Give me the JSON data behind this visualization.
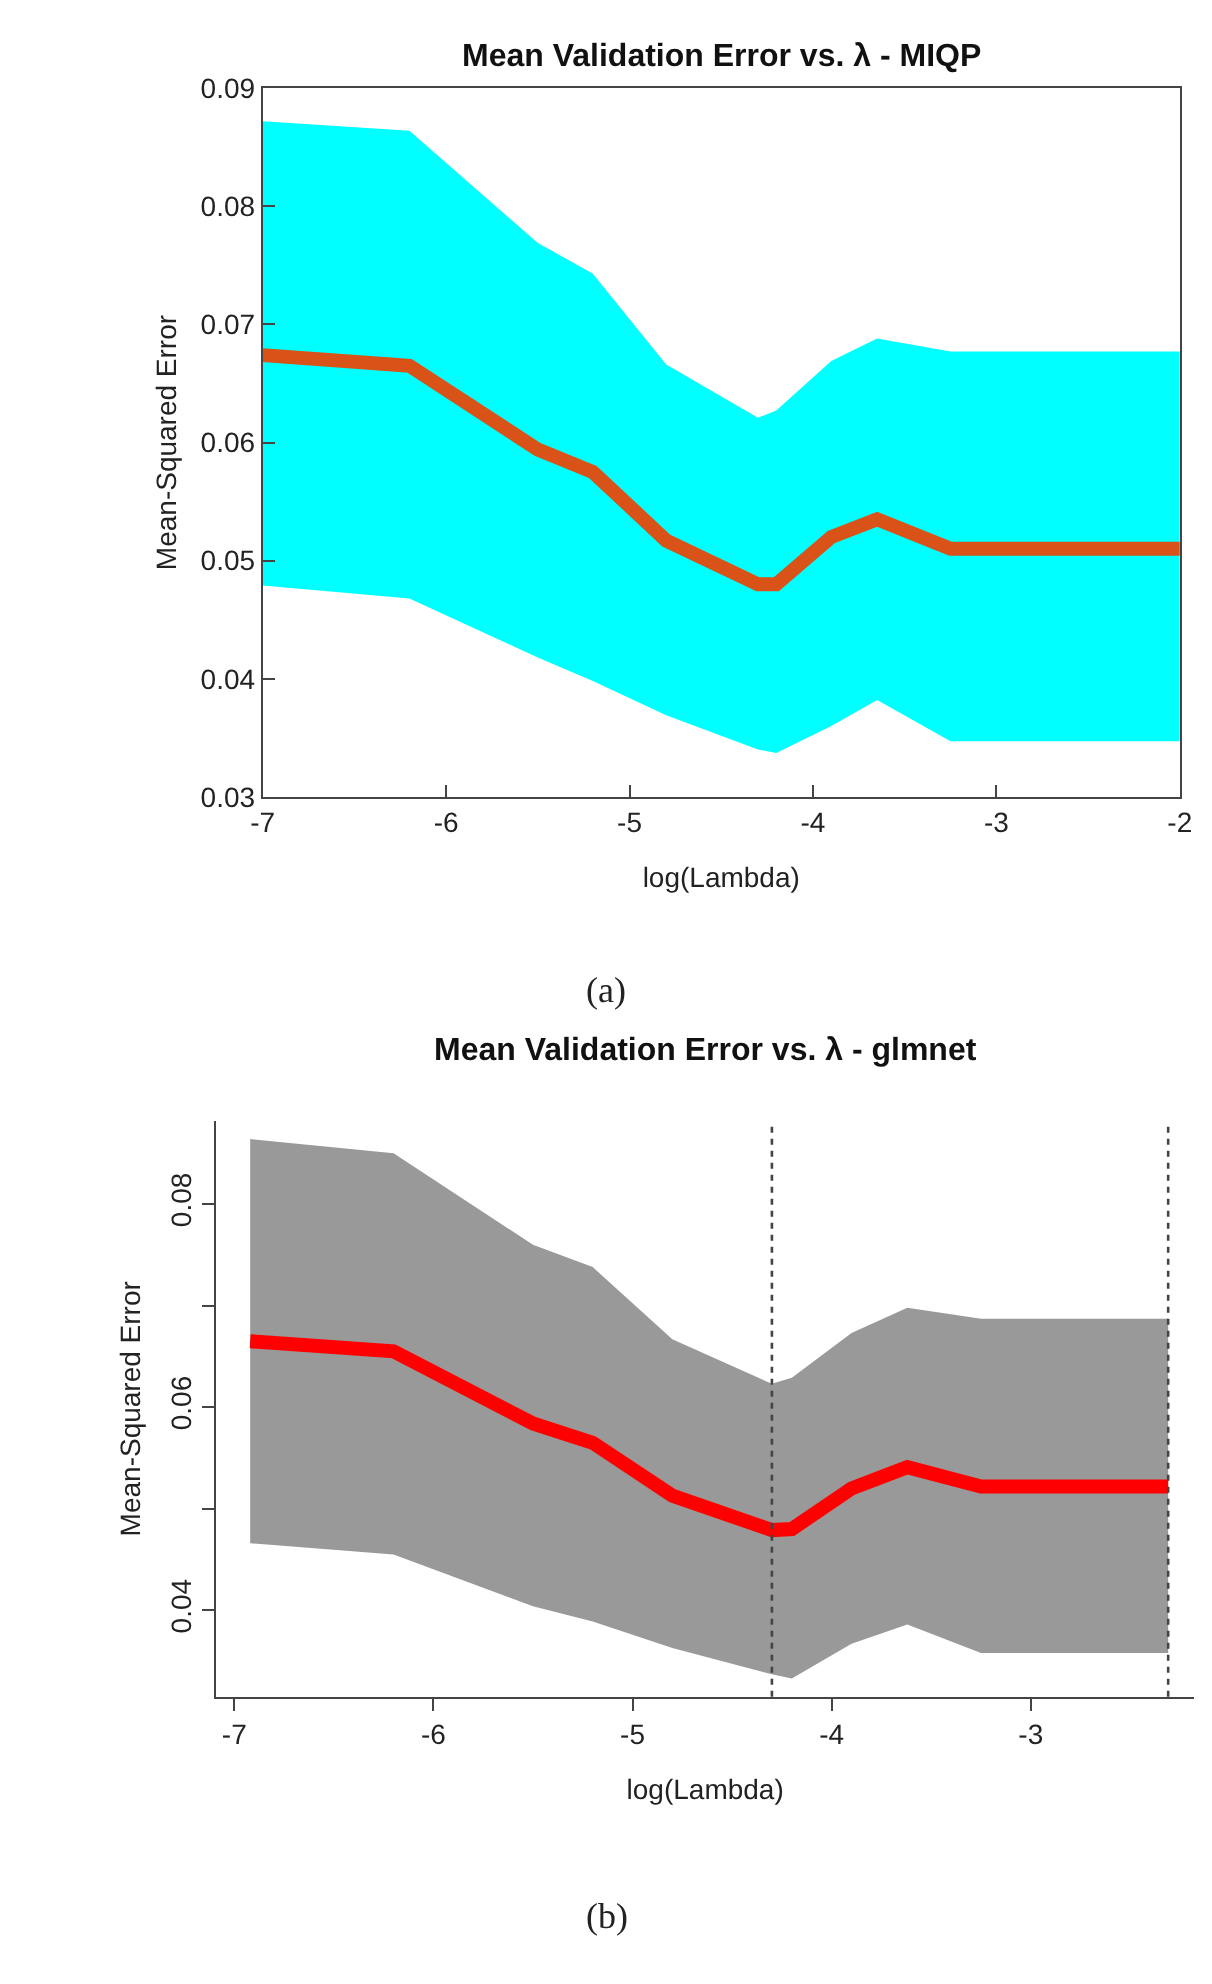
{
  "chart_data": [
    {
      "type": "line",
      "title": "Mean Validation Error vs. λ - MIQP",
      "xlabel": "log(Lambda)",
      "ylabel": "Mean-Squared Error",
      "x": [
        -7,
        -6.2,
        -5.5,
        -5.2,
        -4.8,
        -4.3,
        -4.2,
        -3.9,
        -3.65,
        -3.25,
        -2
      ],
      "series": [
        {
          "color": "#d95319",
          "values": [
            0.0674,
            0.0665,
            0.0594,
            0.0575,
            0.0517,
            0.048,
            0.048,
            0.052,
            0.0535,
            0.051,
            0.051
          ],
          "upper": [
            0.0872,
            0.0864,
            0.0769,
            0.0743,
            0.0666,
            0.0621,
            0.0627,
            0.0669,
            0.0688,
            0.0677,
            0.0677
          ],
          "lower": [
            0.0479,
            0.0468,
            0.0418,
            0.0398,
            0.0369,
            0.034,
            0.0337,
            0.036,
            0.0382,
            0.0347,
            0.0347
          ]
        }
      ],
      "xlim": [
        -7,
        -2
      ],
      "xticks": [
        -7,
        -6,
        -5,
        -4,
        -3,
        -2
      ],
      "ylim": [
        0.03,
        0.09
      ],
      "yticks": [
        0.03,
        0.04,
        0.05,
        0.06,
        0.07,
        0.08,
        0.09
      ],
      "line_style": "solid",
      "marker": "none",
      "annotations": [
        "(a)"
      ]
    },
    {
      "type": "line",
      "title": "Mean Validation Error vs. λ - glmnet",
      "xlabel": "log(Lambda)",
      "ylabel": "Mean-Squared Error",
      "x": [
        -6.92,
        -6.2,
        -5.5,
        -5.2,
        -4.8,
        -4.3,
        -4.2,
        -3.9,
        -3.62,
        -3.25,
        -2.31
      ],
      "series": [
        {
          "color": "#ff0000",
          "values": [
            0.0665,
            0.0655,
            0.0584,
            0.0565,
            0.0513,
            0.0479,
            0.048,
            0.052,
            0.0541,
            0.0522,
            0.0522
          ],
          "upper": [
            0.0864,
            0.085,
            0.076,
            0.0738,
            0.0667,
            0.0623,
            0.0629,
            0.0673,
            0.0698,
            0.0687,
            0.0687
          ],
          "lower": [
            0.0466,
            0.0455,
            0.0404,
            0.0389,
            0.0363,
            0.0337,
            0.0333,
            0.0367,
            0.0386,
            0.0358,
            0.0358
          ]
        }
      ],
      "xlim": [
        -7.09,
        -2.18
      ],
      "xticks": [
        -7,
        -6,
        -5,
        -4,
        -3
      ],
      "ylim": [
        0.0315,
        0.0882
      ],
      "yticks": [
        {
          "value": 0.04,
          "label": "0.04"
        },
        {
          "value": 0.05,
          "label": null
        },
        {
          "value": 0.06,
          "label": "0.06"
        },
        {
          "value": 0.07,
          "label": null
        },
        {
          "value": 0.08,
          "label": "0.08"
        }
      ],
      "ref_lines": [
        {
          "axis": "x",
          "value": -4.3,
          "label": null,
          "color": "#444444",
          "line_style": "dotted"
        },
        {
          "axis": "x",
          "value": -2.31,
          "label": null,
          "color": "#444444",
          "line_style": "dotted"
        }
      ],
      "line_style": "solid",
      "marker": "none",
      "annotations": [
        "(b)"
      ]
    }
  ]
}
